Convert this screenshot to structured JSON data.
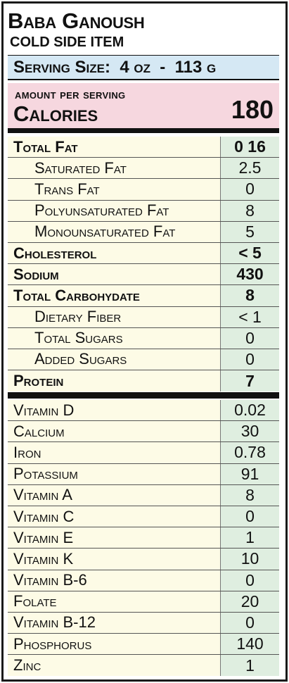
{
  "product": {
    "title": "Baba Ganoush",
    "subtitle": "COLD SIDE ITEM"
  },
  "serving": {
    "text": "Serving Size:  4 oz  -  113 g"
  },
  "calories": {
    "amount_label": "amount per serving",
    "label": "Calories",
    "value": "180"
  },
  "macros": [
    {
      "name": "Total Fat",
      "value": "0 16",
      "bold": true,
      "indent": false
    },
    {
      "name": "Saturated Fat",
      "value": "2.5",
      "bold": false,
      "indent": true
    },
    {
      "name": "Trans Fat",
      "value": "0",
      "bold": false,
      "indent": true
    },
    {
      "name": "Polyunsaturated Fat",
      "value": "8",
      "bold": false,
      "indent": true
    },
    {
      "name": "Monounsaturated Fat",
      "value": "5",
      "bold": false,
      "indent": true
    },
    {
      "name": "Cholesterol",
      "value": "< 5",
      "bold": true,
      "indent": false
    },
    {
      "name": "Sodium",
      "value": "430",
      "bold": true,
      "indent": false
    },
    {
      "name": "Total Carbohydate",
      "value": "8",
      "bold": true,
      "indent": false
    },
    {
      "name": "Dietary Fiber",
      "value": "< 1",
      "bold": false,
      "indent": true
    },
    {
      "name": "Total Sugars",
      "value": "0",
      "bold": false,
      "indent": true
    },
    {
      "name": "Added Sugars",
      "value": "0",
      "bold": false,
      "indent": true
    },
    {
      "name": "Protein",
      "value": "7",
      "bold": true,
      "indent": false
    }
  ],
  "micros": [
    {
      "name": "Vitamin D",
      "value": "0.02"
    },
    {
      "name": "Calcium",
      "value": "30"
    },
    {
      "name": "Iron",
      "value": "0.78"
    },
    {
      "name": "Potassium",
      "value": "91"
    },
    {
      "name": "Vitamin A",
      "value": "8"
    },
    {
      "name": "Vitamin C",
      "value": "0"
    },
    {
      "name": "Vitamin E",
      "value": "1"
    },
    {
      "name": "Vitamin K",
      "value": "10"
    },
    {
      "name": "Vitamin B-6",
      "value": "0"
    },
    {
      "name": "Folate",
      "value": "20"
    },
    {
      "name": "Vitamin B-12",
      "value": "0"
    },
    {
      "name": "Phosphorus",
      "value": "140"
    },
    {
      "name": "Zinc",
      "value": "1"
    }
  ],
  "colors": {
    "serving_bg": "#d5e8f4",
    "calories_bg": "#f6d7df",
    "row_bg": "#fdfbe6",
    "value_bg": "#dfeee0"
  }
}
